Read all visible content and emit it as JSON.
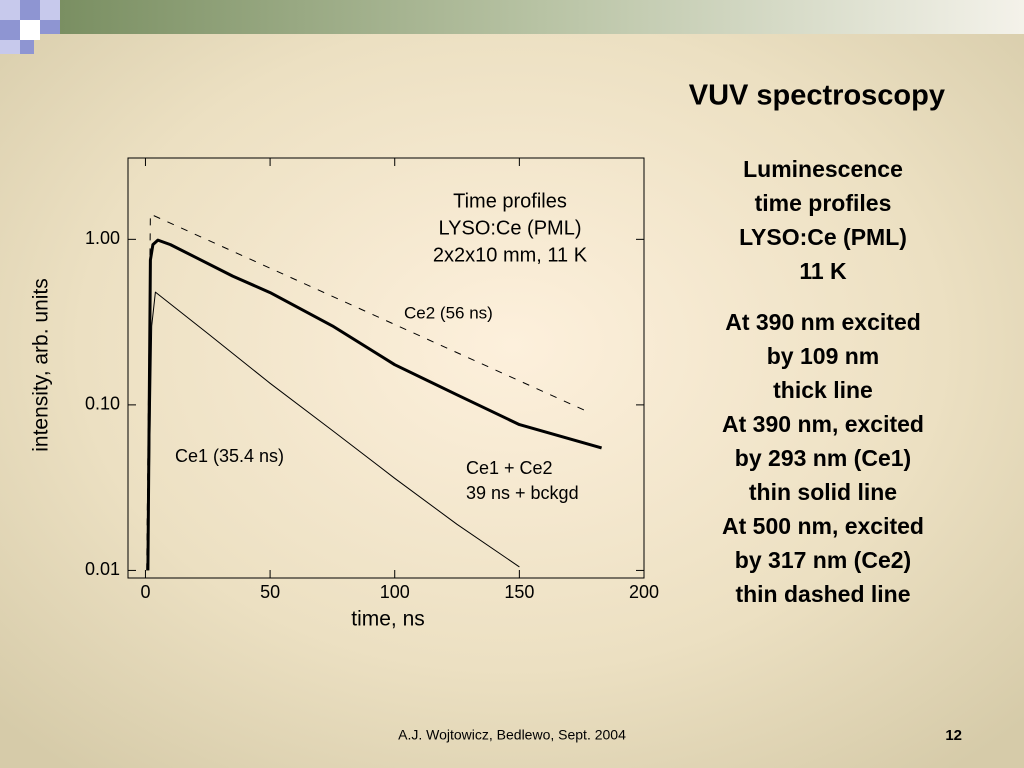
{
  "slide_title": "VUV spectroscopy",
  "side_text": [
    [
      "Luminescence",
      "time profiles",
      "LYSO:Ce (PML)",
      "11 K"
    ],
    [
      "At 390 nm excited",
      "by 109 nm",
      "thick line",
      "At 390 nm, excited",
      "by 293 nm (Ce1)",
      "thin solid line",
      "At 500 nm, excited",
      "by 317 nm (Ce2)",
      "thin dashed line"
    ]
  ],
  "footer": "A.J. Wojtowicz, Bedlewo, Sept. 2004",
  "page_number": "12",
  "chart_data": {
    "type": "line",
    "xlabel": "time, ns",
    "ylabel": "intensity, arb. units",
    "log_y": true,
    "xlim": [
      -7,
      200
    ],
    "ylim": [
      0.009,
      3.1
    ],
    "xticks": [
      0,
      50,
      100,
      150,
      200
    ],
    "yticks": [
      {
        "value": 0.01,
        "label": "0.01"
      },
      {
        "value": 0.1,
        "label": "0.10"
      },
      {
        "value": 1,
        "label": "1.00"
      }
    ],
    "annotations": [
      [
        "Time profiles",
        "LYSO:Ce (PML)",
        "2x2x10 mm, 11 K"
      ],
      [
        "Ce2 (56 ns)"
      ],
      [
        "Ce1 (35.4 ns)"
      ],
      [
        "Ce1 + Ce2",
        "39 ns + bckgd"
      ]
    ],
    "series": [
      {
        "color": "#000000",
        "style": "thick",
        "x": [
          1,
          2,
          3,
          5,
          10,
          20,
          35,
          50,
          75,
          100,
          125,
          150,
          183
        ],
        "values": [
          0.01,
          0.75,
          0.93,
          0.99,
          0.93,
          0.78,
          0.6,
          0.477,
          0.3,
          0.175,
          0.115,
          0.076,
          0.055
        ]
      },
      {
        "color": "#000000",
        "style": "thin",
        "x": [
          1,
          2.5,
          4,
          25,
          50,
          75,
          100,
          125,
          150
        ],
        "values": [
          0.01,
          0.3,
          0.48,
          0.27,
          0.135,
          0.07,
          0.036,
          0.019,
          0.0105
        ]
      },
      {
        "color": "#000000",
        "style": "dashed",
        "x": [
          0.5,
          2,
          176
        ],
        "values": [
          0.01,
          1.42,
          0.093
        ]
      }
    ]
  }
}
